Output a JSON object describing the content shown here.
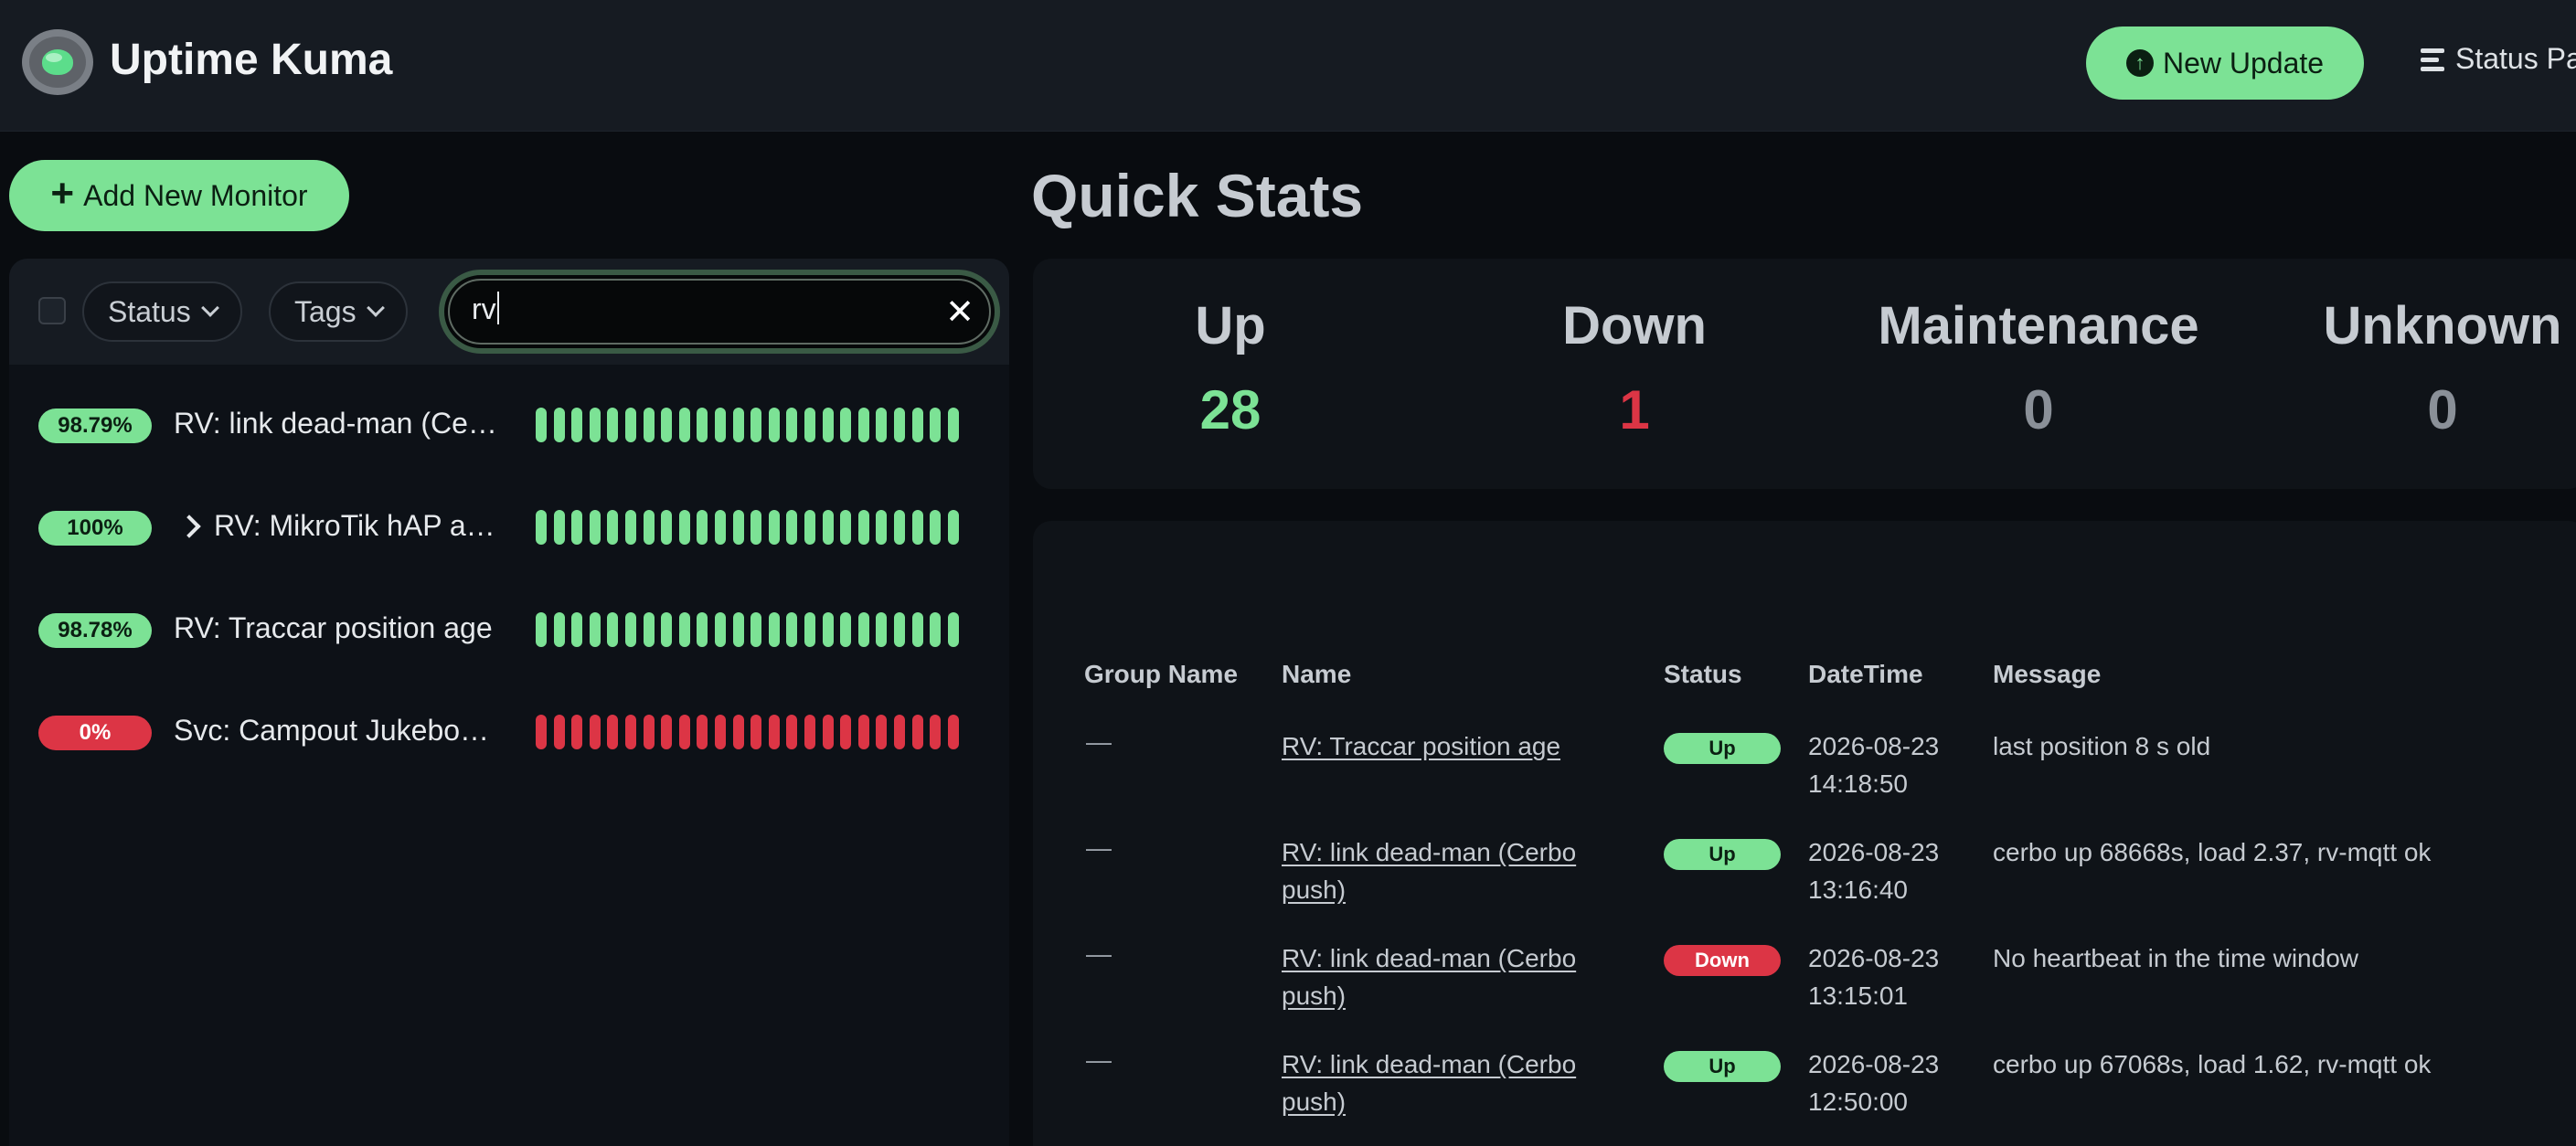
{
  "header": {
    "brand": "Uptime Kuma",
    "update_button": "New Update",
    "status_page_link": "Status Pa"
  },
  "sidebar": {
    "add_button": "Add New Monitor",
    "filters": {
      "status": "Status",
      "tags": "Tags"
    },
    "search": {
      "value": "rv"
    },
    "monitors": [
      {
        "uptime": "98.79%",
        "name": "RV: link dead-man (Ce…",
        "status": "up",
        "expandable": false
      },
      {
        "uptime": "100%",
        "name": "RV: MikroTik hAP a…",
        "status": "up",
        "expandable": true
      },
      {
        "uptime": "98.78%",
        "name": "RV: Traccar position age",
        "status": "up",
        "expandable": false
      },
      {
        "uptime": "0%",
        "name": "Svc: Campout Jukebo…",
        "status": "down",
        "expandable": false
      }
    ]
  },
  "quick_stats": {
    "title": "Quick Stats",
    "items": [
      {
        "label": "Up",
        "value": "28",
        "color": "#7ce295"
      },
      {
        "label": "Down",
        "value": "1",
        "color": "#dc3545"
      },
      {
        "label": "Maintenance",
        "value": "0",
        "color": "#8a9098"
      },
      {
        "label": "Unknown",
        "value": "0",
        "color": "#8a9098"
      }
    ]
  },
  "events": {
    "headers": {
      "group": "Group Name",
      "name": "Name",
      "status": "Status",
      "datetime": "DateTime",
      "message": "Message"
    },
    "rows": [
      {
        "group": "—",
        "name": "RV: Traccar position age",
        "status": "Up",
        "date": "2026-08-23",
        "time": "14:18:50",
        "message": "last position 8 s old"
      },
      {
        "group": "—",
        "name": "RV: link dead-man (Cerbo push)",
        "status": "Up",
        "date": "2026-08-23",
        "time": "13:16:40",
        "message": "cerbo up 68668s, load 2.37, rv-mqtt ok"
      },
      {
        "group": "—",
        "name": "RV: link dead-man (Cerbo push)",
        "status": "Down",
        "date": "2026-08-23",
        "time": "13:15:01",
        "message": "No heartbeat in the time window"
      },
      {
        "group": "—",
        "name": "RV: link dead-man (Cerbo push)",
        "status": "Up",
        "date": "2026-08-23",
        "time": "12:50:00",
        "message": "cerbo up 67068s, load 1.62, rv-mqtt ok"
      }
    ]
  }
}
